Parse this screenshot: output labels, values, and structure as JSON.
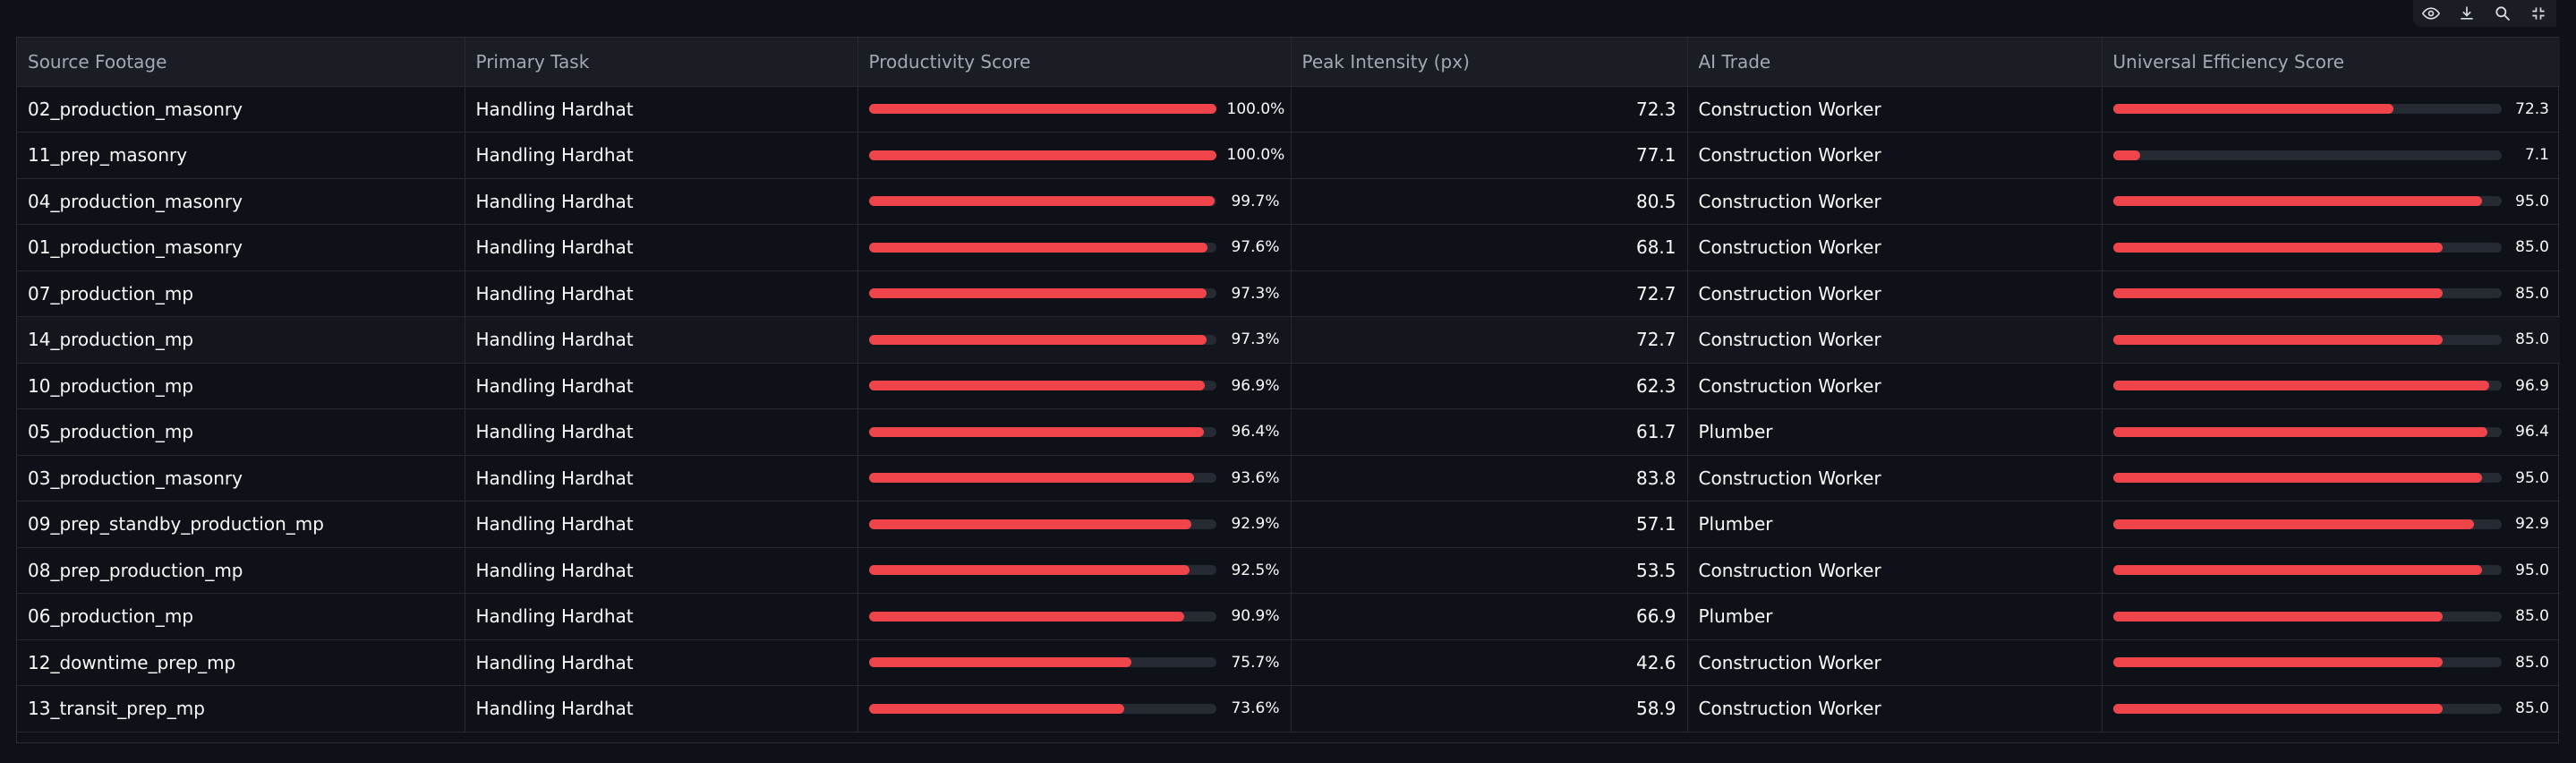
{
  "toolbar": {
    "icons": [
      "eye-icon",
      "download-icon",
      "search-icon",
      "fullscreen-icon"
    ]
  },
  "colors": {
    "bar_fill": "#f0444b",
    "bar_track": "#262a33",
    "background": "#0e1117"
  },
  "table": {
    "columns": [
      "Source Footage",
      "Primary Task",
      "Productivity Score",
      "Peak Intensity (px)",
      "AI Trade",
      "Universal Efficiency Score"
    ],
    "rows": [
      {
        "source": "02_production_masonry",
        "task": "Handling Hardhat",
        "productivity": "100.0%",
        "productivity_value": 100.0,
        "peak": "72.3",
        "trade": "Construction Worker",
        "efficiency": "72.3",
        "efficiency_value": 72.3
      },
      {
        "source": "11_prep_masonry",
        "task": "Handling Hardhat",
        "productivity": "100.0%",
        "productivity_value": 100.0,
        "peak": "77.1",
        "trade": "Construction Worker",
        "efficiency": "7.1",
        "efficiency_value": 7.1
      },
      {
        "source": "04_production_masonry",
        "task": "Handling Hardhat",
        "productivity": "99.7%",
        "productivity_value": 99.7,
        "peak": "80.5",
        "trade": "Construction Worker",
        "efficiency": "95.0",
        "efficiency_value": 95.0
      },
      {
        "source": "01_production_masonry",
        "task": "Handling Hardhat",
        "productivity": "97.6%",
        "productivity_value": 97.6,
        "peak": "68.1",
        "trade": "Construction Worker",
        "efficiency": "85.0",
        "efficiency_value": 85.0
      },
      {
        "source": "07_production_mp",
        "task": "Handling Hardhat",
        "productivity": "97.3%",
        "productivity_value": 97.3,
        "peak": "72.7",
        "trade": "Construction Worker",
        "efficiency": "85.0",
        "efficiency_value": 85.0
      },
      {
        "source": "14_production_mp",
        "task": "Handling Hardhat",
        "productivity": "97.3%",
        "productivity_value": 97.3,
        "peak": "72.7",
        "trade": "Construction Worker",
        "efficiency": "85.0",
        "efficiency_value": 85.0
      },
      {
        "source": "10_production_mp",
        "task": "Handling Hardhat",
        "productivity": "96.9%",
        "productivity_value": 96.9,
        "peak": "62.3",
        "trade": "Construction Worker",
        "efficiency": "96.9",
        "efficiency_value": 96.9
      },
      {
        "source": "05_production_mp",
        "task": "Handling Hardhat",
        "productivity": "96.4%",
        "productivity_value": 96.4,
        "peak": "61.7",
        "trade": "Plumber",
        "efficiency": "96.4",
        "efficiency_value": 96.4
      },
      {
        "source": "03_production_masonry",
        "task": "Handling Hardhat",
        "productivity": "93.6%",
        "productivity_value": 93.6,
        "peak": "83.8",
        "trade": "Construction Worker",
        "efficiency": "95.0",
        "efficiency_value": 95.0
      },
      {
        "source": "09_prep_standby_production_mp",
        "task": "Handling Hardhat",
        "productivity": "92.9%",
        "productivity_value": 92.9,
        "peak": "57.1",
        "trade": "Plumber",
        "efficiency": "92.9",
        "efficiency_value": 92.9
      },
      {
        "source": "08_prep_production_mp",
        "task": "Handling Hardhat",
        "productivity": "92.5%",
        "productivity_value": 92.5,
        "peak": "53.5",
        "trade": "Construction Worker",
        "efficiency": "95.0",
        "efficiency_value": 95.0
      },
      {
        "source": "06_production_mp",
        "task": "Handling Hardhat",
        "productivity": "90.9%",
        "productivity_value": 90.9,
        "peak": "66.9",
        "trade": "Plumber",
        "efficiency": "85.0",
        "efficiency_value": 85.0
      },
      {
        "source": "12_downtime_prep_mp",
        "task": "Handling Hardhat",
        "productivity": "75.7%",
        "productivity_value": 75.7,
        "peak": "42.6",
        "trade": "Construction Worker",
        "efficiency": "85.0",
        "efficiency_value": 85.0
      },
      {
        "source": "13_transit_prep_mp",
        "task": "Handling Hardhat",
        "productivity": "73.6%",
        "productivity_value": 73.6,
        "peak": "58.9",
        "trade": "Construction Worker",
        "efficiency": "85.0",
        "efficiency_value": 85.0
      }
    ]
  }
}
